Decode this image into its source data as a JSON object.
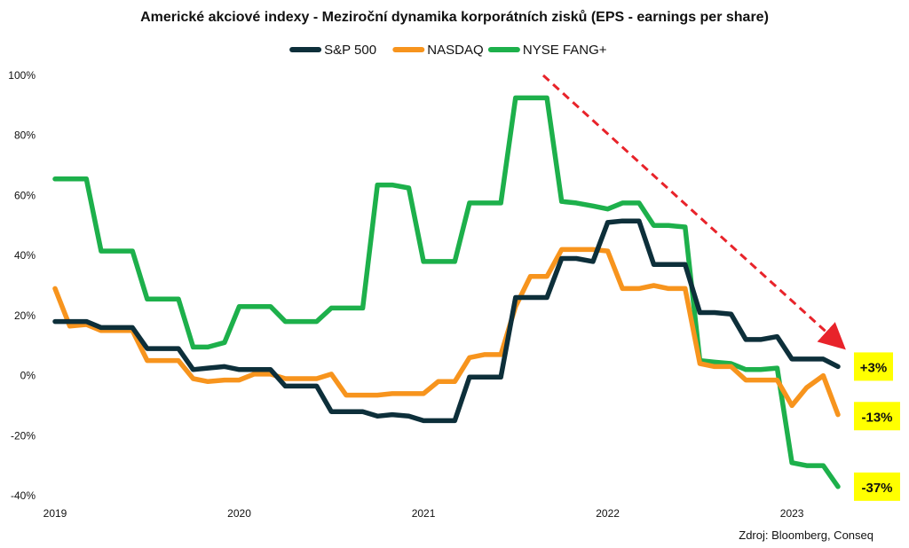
{
  "chart_data": {
    "type": "line",
    "title": "Americké akciové indexy - Meziroční dynamika korporátních zisků (EPS - earnings per share)",
    "source": "Zdroj: Bloomberg, Conseq",
    "legend_position": "top-center",
    "ylim": [
      -40,
      100
    ],
    "y_ticks": [
      -40,
      -20,
      0,
      20,
      40,
      60,
      80,
      100
    ],
    "y_tick_labels": [
      "-40%",
      "-20%",
      "0%",
      "20%",
      "40%",
      "60%",
      "80%",
      "100%"
    ],
    "x_tick_labels": [
      "2019",
      "2020",
      "2021",
      "2022",
      "2023"
    ],
    "x_tick_positions": [
      2019.0,
      2020.0,
      2021.0,
      2022.0,
      2023.0
    ],
    "xlim": [
      2019.0,
      2023.25
    ],
    "colors": {
      "S&P 500": "#0d2f3a",
      "NASDAQ": "#f7941d",
      "NYSE FANG+": "#1db04b",
      "highlight": "#ffff00",
      "arrow": "#e8232a"
    },
    "series": [
      {
        "name": "S&P 500",
        "x": [
          2019.0,
          2019.08,
          2019.17,
          2019.25,
          2019.33,
          2019.42,
          2019.5,
          2019.58,
          2019.67,
          2019.75,
          2019.83,
          2019.92,
          2020.0,
          2020.08,
          2020.17,
          2020.25,
          2020.33,
          2020.42,
          2020.5,
          2020.58,
          2020.67,
          2020.75,
          2020.83,
          2020.92,
          2021.0,
          2021.08,
          2021.17,
          2021.25,
          2021.33,
          2021.42,
          2021.5,
          2021.58,
          2021.67,
          2021.75,
          2021.83,
          2021.92,
          2022.0,
          2022.08,
          2022.17,
          2022.25,
          2022.33,
          2022.42,
          2022.5,
          2022.58,
          2022.67,
          2022.75,
          2022.83,
          2022.92,
          2023.0,
          2023.08,
          2023.17,
          2023.25
        ],
        "values": [
          18,
          18,
          18,
          16,
          16,
          16,
          9,
          9,
          9,
          2,
          2.5,
          3,
          2,
          2,
          2,
          -3.5,
          -3.5,
          -3.5,
          -12,
          -12,
          -12,
          -13.5,
          -13,
          -13.5,
          -15,
          -15,
          -15,
          -0.5,
          -0.5,
          -0.5,
          26,
          26,
          26,
          39,
          39,
          38,
          51,
          51.5,
          51.5,
          37,
          37,
          37,
          21,
          21,
          20.5,
          12,
          12,
          13,
          5.5,
          5.5,
          5.5,
          3
        ]
      },
      {
        "name": "NASDAQ",
        "x": [
          2019.0,
          2019.08,
          2019.17,
          2019.25,
          2019.33,
          2019.42,
          2019.5,
          2019.58,
          2019.67,
          2019.75,
          2019.83,
          2019.92,
          2020.0,
          2020.08,
          2020.17,
          2020.25,
          2020.33,
          2020.42,
          2020.5,
          2020.58,
          2020.67,
          2020.75,
          2020.83,
          2020.92,
          2021.0,
          2021.08,
          2021.17,
          2021.25,
          2021.33,
          2021.42,
          2021.5,
          2021.58,
          2021.67,
          2021.75,
          2021.83,
          2021.92,
          2022.0,
          2022.08,
          2022.17,
          2022.25,
          2022.33,
          2022.42,
          2022.5,
          2022.58,
          2022.67,
          2022.75,
          2022.83,
          2022.92,
          2023.0,
          2023.08,
          2023.17,
          2023.25
        ],
        "values": [
          29,
          16.5,
          17,
          15,
          15,
          15,
          5,
          5,
          5,
          -1,
          -2,
          -1.5,
          -1.5,
          0.5,
          0.5,
          -1,
          -1,
          -1,
          0.5,
          -6.5,
          -6.5,
          -6.5,
          -6,
          -6,
          -6,
          -2,
          -2,
          6,
          7,
          7,
          23,
          33,
          33,
          42,
          42,
          42,
          41.5,
          29,
          29,
          30,
          29,
          29,
          4,
          3,
          3,
          -1.5,
          -1.5,
          -1.5,
          -10,
          -4,
          0,
          -13
        ]
      },
      {
        "name": "NYSE FANG+",
        "x": [
          2019.0,
          2019.08,
          2019.17,
          2019.25,
          2019.33,
          2019.42,
          2019.5,
          2019.58,
          2019.67,
          2019.75,
          2019.83,
          2019.92,
          2020.0,
          2020.08,
          2020.17,
          2020.25,
          2020.33,
          2020.42,
          2020.5,
          2020.58,
          2020.67,
          2020.75,
          2020.83,
          2020.92,
          2021.0,
          2021.08,
          2021.17,
          2021.25,
          2021.33,
          2021.42,
          2021.5,
          2021.58,
          2021.67,
          2021.75,
          2021.83,
          2021.92,
          2022.0,
          2022.08,
          2022.17,
          2022.25,
          2022.33,
          2022.42,
          2022.5,
          2022.58,
          2022.67,
          2022.75,
          2022.83,
          2022.92,
          2023.0,
          2023.08,
          2023.17,
          2023.25
        ],
        "values": [
          65.5,
          65.5,
          65.5,
          41.5,
          41.5,
          41.5,
          25.5,
          25.5,
          25.5,
          9.5,
          9.5,
          11,
          23,
          23,
          23,
          18,
          18,
          18,
          22.5,
          22.5,
          22.5,
          63.5,
          63.5,
          62.5,
          38,
          38,
          38,
          57.5,
          57.5,
          57.5,
          92.5,
          92.5,
          92.5,
          58,
          57.5,
          56.5,
          55.5,
          57.5,
          57.5,
          50,
          50,
          49.5,
          5,
          4.5,
          4,
          2,
          2,
          2.5,
          -29,
          -30,
          -30,
          -37
        ]
      }
    ],
    "end_labels": [
      {
        "series": "S&P 500",
        "text": "+3%",
        "value": 3
      },
      {
        "series": "NASDAQ",
        "text": "-13%",
        "value": -13
      },
      {
        "series": "NYSE FANG+",
        "text": "-37%",
        "value": -37
      }
    ],
    "annotation": {
      "type": "dashed-arrow",
      "from": {
        "x": 2021.65,
        "y": 100
      },
      "to": {
        "x": 2023.25,
        "y": 11
      }
    }
  }
}
